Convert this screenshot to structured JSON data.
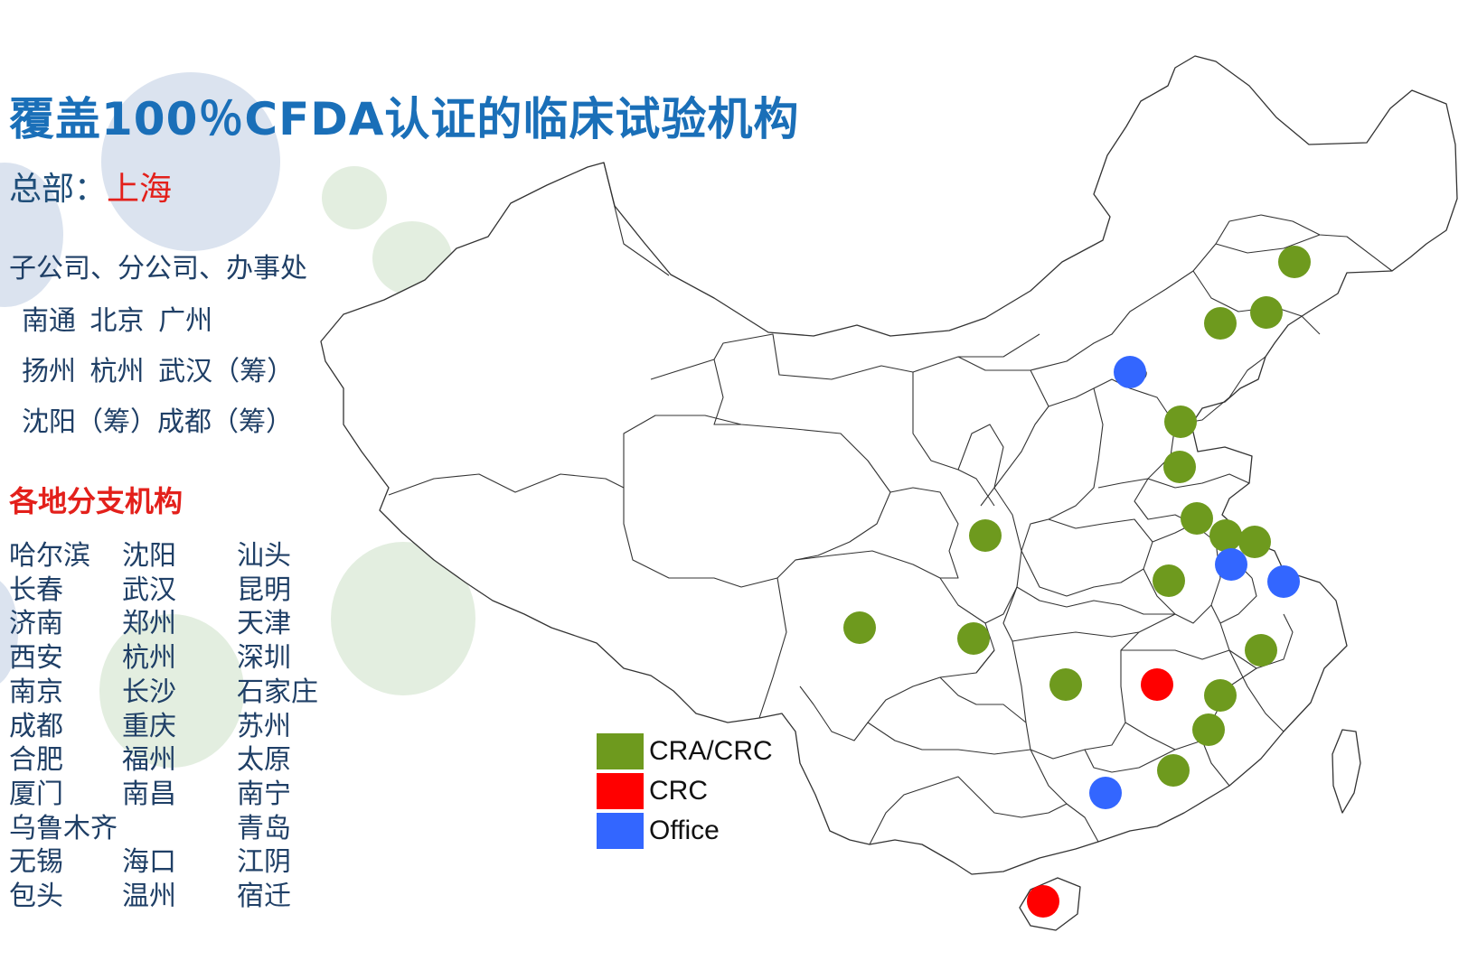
{
  "title": "覆盖100％CFDA认证的临床试验机构",
  "headquarters": {
    "label": "总部：",
    "city": "上海"
  },
  "subsidiaries": {
    "heading": "子公司、分公司、办事处",
    "lines": [
      "南通 北京 广州",
      "扬州 杭州 武汉（筹）",
      "沈阳（筹）成都（筹）"
    ]
  },
  "branches": {
    "heading": "各地分支机构",
    "col1": [
      "哈尔滨",
      "长春",
      "济南",
      "西安",
      "南京",
      "成都",
      "合肥",
      "厦门",
      "乌鲁木齐",
      "无锡",
      "包头"
    ],
    "col2": [
      "沈阳",
      "武汉",
      "郑州",
      "杭州",
      "长沙",
      "重庆",
      "福州",
      "南昌",
      "",
      "海口",
      "温州"
    ],
    "col3": [
      "汕头",
      "昆明",
      "天津",
      "深圳",
      "石家庄",
      "苏州",
      "太原",
      "南宁",
      "青岛",
      "江阴",
      "宿迁"
    ]
  },
  "legend": [
    {
      "label": "CRA/CRC",
      "color": "#6e9a1e"
    },
    {
      "label": "CRC",
      "color": "#ff0000"
    },
    {
      "label": "Office",
      "color": "#3366ff"
    }
  ],
  "colors": {
    "title": "#1a6fb8",
    "accent_red": "#e3201b",
    "text": "#1f3f66"
  },
  "map_markers": [
    {
      "type": "CRA/CRC"
    },
    {
      "type": "CRA/CRC"
    },
    {
      "type": "CRA/CRC"
    },
    {
      "type": "Office"
    },
    {
      "type": "CRA/CRC"
    },
    {
      "type": "CRA/CRC"
    },
    {
      "type": "CRA/CRC"
    },
    {
      "type": "CRA/CRC"
    },
    {
      "type": "CRA/CRC"
    },
    {
      "type": "Office"
    },
    {
      "type": "Office"
    },
    {
      "type": "CRA/CRC"
    },
    {
      "type": "CRA/CRC"
    },
    {
      "type": "CRA/CRC"
    },
    {
      "type": "CRA/CRC"
    },
    {
      "type": "CRA/CRC"
    },
    {
      "type": "CRC"
    },
    {
      "type": "CRA/CRC"
    },
    {
      "type": "CRA/CRC"
    },
    {
      "type": "CRA/CRC"
    },
    {
      "type": "CRA/CRC"
    },
    {
      "type": "Office"
    },
    {
      "type": "CRC"
    }
  ]
}
